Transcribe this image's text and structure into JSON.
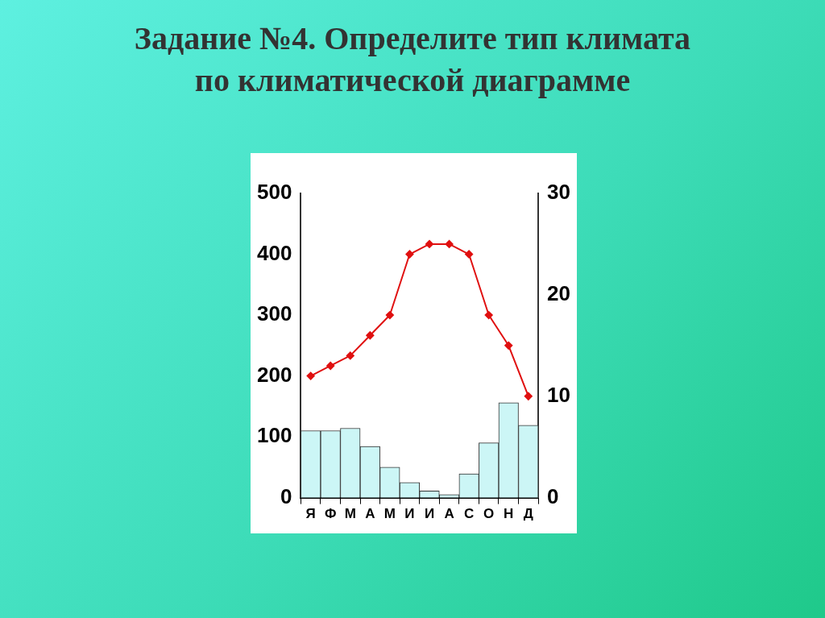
{
  "chart_data": {
    "type": "bar",
    "title": "Задание №4. Определите тип климата по климатической диаграмме",
    "categories": [
      "Я",
      "Ф",
      "М",
      "А",
      "М",
      "И",
      "И",
      "А",
      "С",
      "О",
      "Н",
      "Д"
    ],
    "series": [
      {
        "color": "#ccf6f6",
        "values": [
          110,
          110,
          114,
          84,
          50,
          25,
          11,
          5,
          39,
          90,
          156,
          119
        ]
      },
      {
        "type": "line",
        "axis": "y2",
        "color": "#e01010",
        "values": [
          12,
          13,
          14,
          16,
          18,
          24,
          25,
          25,
          24,
          18,
          15,
          10
        ]
      }
    ],
    "ylim": [
      0,
      500
    ],
    "yticks": [
      0,
      100,
      200,
      300,
      400,
      500
    ],
    "y2lim": [
      0,
      30
    ],
    "y2ticks": [
      0,
      10,
      20,
      30
    ],
    "grid": false,
    "legend": false,
    "marker": "diamond",
    "line_style": "solid"
  }
}
